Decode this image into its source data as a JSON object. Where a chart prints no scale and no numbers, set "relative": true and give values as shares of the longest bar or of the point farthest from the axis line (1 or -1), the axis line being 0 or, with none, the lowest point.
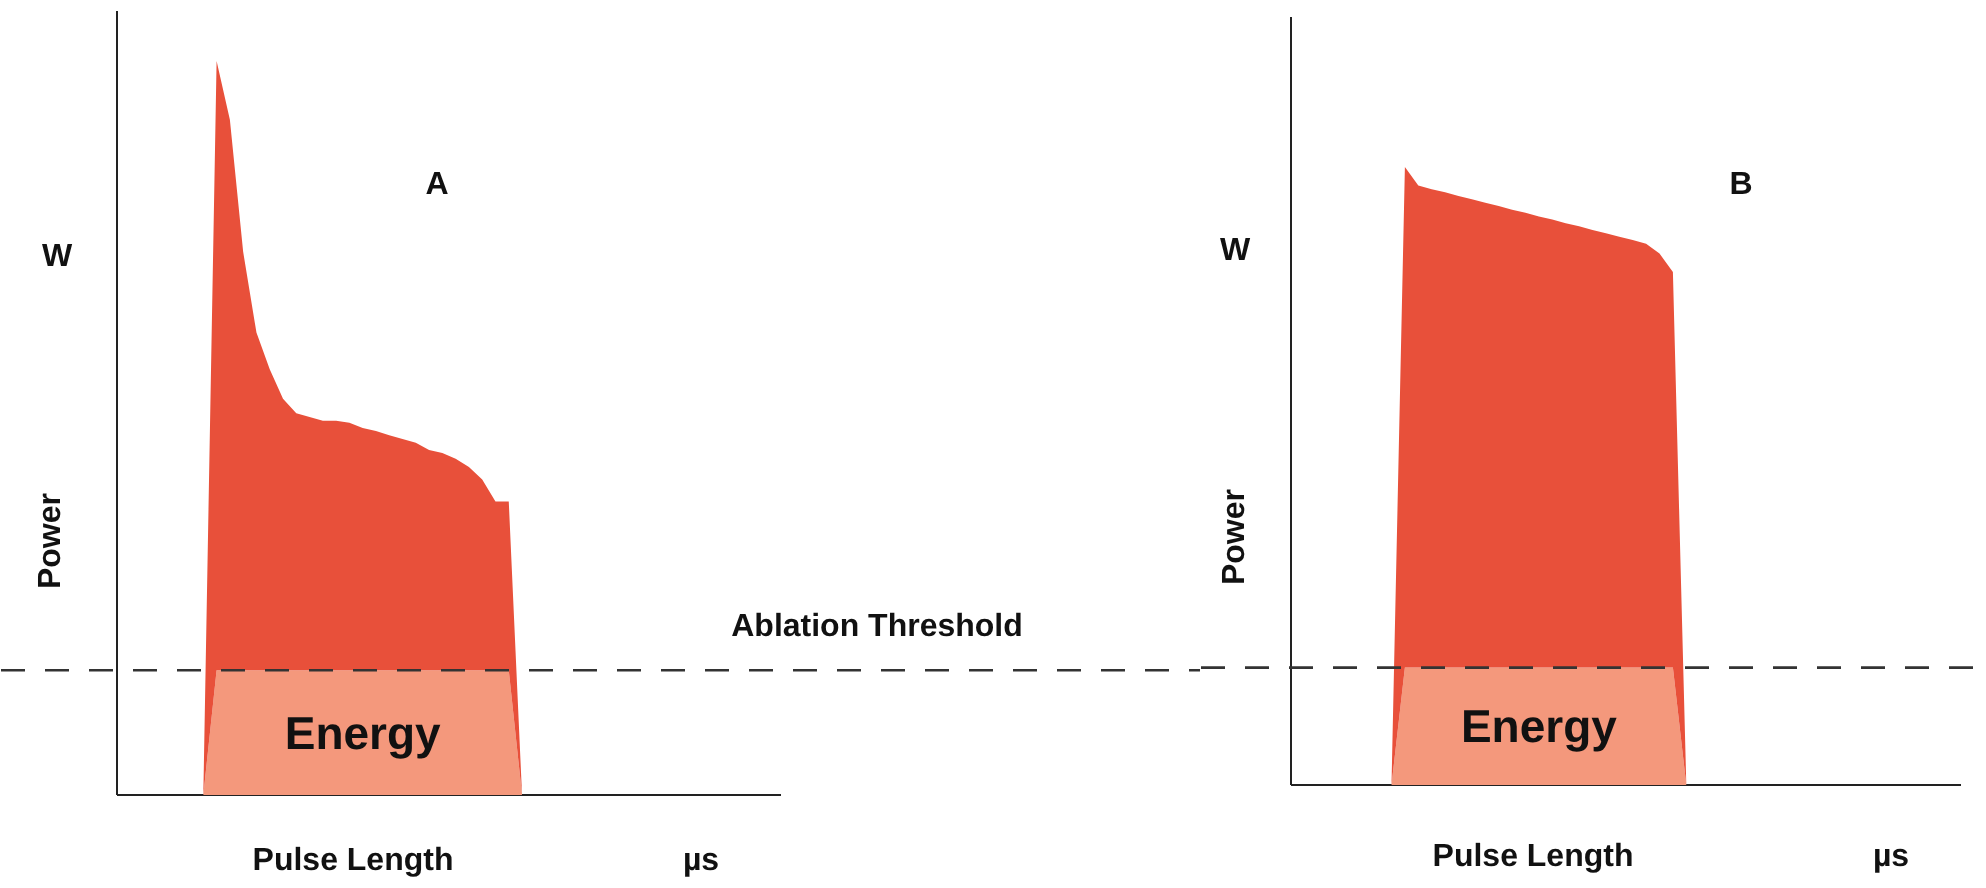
{
  "chart_data": [
    {
      "type": "area",
      "title": "A",
      "xlabel": "Pulse Length",
      "ylabel": "Power",
      "relative": true,
      "stacked": true,
      "annotations": [
        "W",
        "µs"
      ],
      "categories": [
        null,
        null,
        null,
        null,
        null,
        null,
        null,
        null,
        null,
        null,
        null,
        null,
        null,
        null,
        null,
        null,
        null,
        null,
        null,
        null,
        null,
        null,
        null,
        null,
        null,
        null,
        null,
        null,
        null,
        null,
        null,
        null,
        null,
        null,
        null,
        null,
        null,
        null,
        null,
        null,
        null,
        null,
        null,
        null,
        null,
        null,
        null,
        null,
        null,
        null
      ],
      "series": [
        {
          "name": "Energy",
          "color": "#f4987c",
          "values": [
            0,
            0,
            0,
            0,
            0,
            0,
            0,
            0.17,
            0.17,
            0.17,
            0.17,
            0.17,
            0.17,
            0.17,
            0.17,
            0.17,
            0.17,
            0.17,
            0.17,
            0.17,
            0.17,
            0.17,
            0.17,
            0.17,
            0.17,
            0.17,
            0.17,
            0.17,
            0.17,
            0.17,
            0,
            0,
            0,
            0,
            0,
            0,
            0,
            0,
            0,
            0,
            0,
            0,
            0,
            0,
            0,
            0,
            0,
            0,
            0,
            0
          ]
        },
        {
          "color": "#e8503a",
          "values": [
            0,
            0,
            0,
            0,
            0,
            0,
            0,
            0.83,
            0.75,
            0.57,
            0.46,
            0.41,
            0.37,
            0.35,
            0.345,
            0.34,
            0.34,
            0.337,
            0.33,
            0.326,
            0.32,
            0.315,
            0.31,
            0.3,
            0.296,
            0.288,
            0.277,
            0.26,
            0.23,
            0.23,
            0,
            0,
            0,
            0,
            0,
            0,
            0,
            0,
            0,
            0,
            0,
            0,
            0,
            0,
            0,
            0,
            0,
            0,
            0,
            0
          ]
        }
      ],
      "ref_lines": [
        {
          "axis": "y",
          "value": 0.17,
          "label": "Ablation Threshold",
          "color": "#333333",
          "line_style": "dashed"
        }
      ]
    },
    {
      "type": "area",
      "title": "B",
      "xlabel": "Pulse Length",
      "ylabel": "Power",
      "relative": true,
      "stacked": true,
      "annotations": [
        "W",
        "µs"
      ],
      "categories": [
        null,
        null,
        null,
        null,
        null,
        null,
        null,
        null,
        null,
        null,
        null,
        null,
        null,
        null,
        null,
        null,
        null,
        null,
        null,
        null,
        null,
        null,
        null,
        null,
        null,
        null,
        null,
        null,
        null,
        null,
        null,
        null,
        null,
        null,
        null,
        null,
        null,
        null,
        null,
        null,
        null,
        null,
        null,
        null,
        null,
        null,
        null,
        null,
        null,
        null
      ],
      "series": [
        {
          "name": "Energy",
          "color": "#f4987c",
          "values": [
            0,
            0,
            0,
            0,
            0,
            0,
            0,
            0,
            0.19,
            0.19,
            0.19,
            0.19,
            0.19,
            0.19,
            0.19,
            0.19,
            0.19,
            0.19,
            0.19,
            0.19,
            0.19,
            0.19,
            0.19,
            0.19,
            0.19,
            0.19,
            0.19,
            0.19,
            0.19,
            0,
            0,
            0,
            0,
            0,
            0,
            0,
            0,
            0,
            0,
            0,
            0,
            0,
            0,
            0,
            0,
            0,
            0,
            0,
            0,
            0
          ]
        },
        {
          "color": "#e8503a",
          "values": [
            0,
            0,
            0,
            0,
            0,
            0,
            0,
            0,
            0.81,
            0.78,
            0.774,
            0.769,
            0.763,
            0.758,
            0.752,
            0.747,
            0.741,
            0.736,
            0.73,
            0.725,
            0.719,
            0.714,
            0.708,
            0.703,
            0.697,
            0.692,
            0.686,
            0.67,
            0.64,
            0,
            0,
            0,
            0,
            0,
            0,
            0,
            0,
            0,
            0,
            0,
            0,
            0,
            0,
            0,
            0,
            0,
            0,
            0,
            0,
            0
          ]
        }
      ],
      "ref_lines": [
        {
          "axis": "y",
          "value": 0.19,
          "color": "#333333",
          "line_style": "dashed"
        }
      ]
    }
  ]
}
